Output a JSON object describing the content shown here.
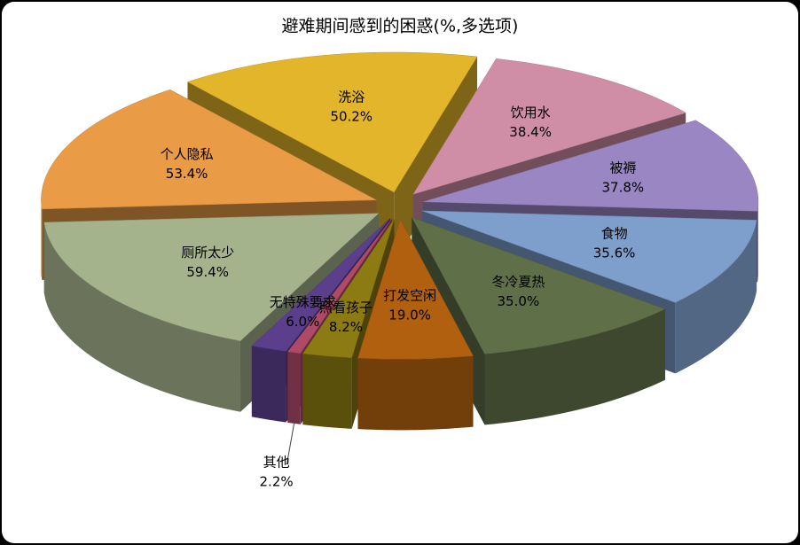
{
  "chart_data": {
    "type": "pie3d",
    "title": "避难期间感到的困惑(%,多选项)",
    "categories": [
      "洗浴",
      "饮用水",
      "被褥",
      "食物",
      "冬冷夏热",
      "打发空闲",
      "照看孩子",
      "其他",
      "无特殊要求",
      "厕所太少",
      "个人隐私"
    ],
    "values": [
      50.2,
      38.4,
      37.8,
      35.6,
      35.0,
      19.0,
      8.2,
      2.2,
      6.0,
      59.4,
      53.4
    ],
    "value_labels": [
      "50.2%",
      "38.4%",
      "37.8%",
      "35.6%",
      "35.0%",
      "19.0%",
      "8.2%",
      "2.2%",
      "6.0%",
      "59.4%",
      "53.4%"
    ],
    "colors": [
      "#e3b52a",
      "#cf8ea6",
      "#9a86c2",
      "#7e9ecb",
      "#5f6f47",
      "#b0600f",
      "#8c7a12",
      "#ae4a68",
      "#5b3f8c",
      "#a5b38c",
      "#e99b45"
    ]
  }
}
